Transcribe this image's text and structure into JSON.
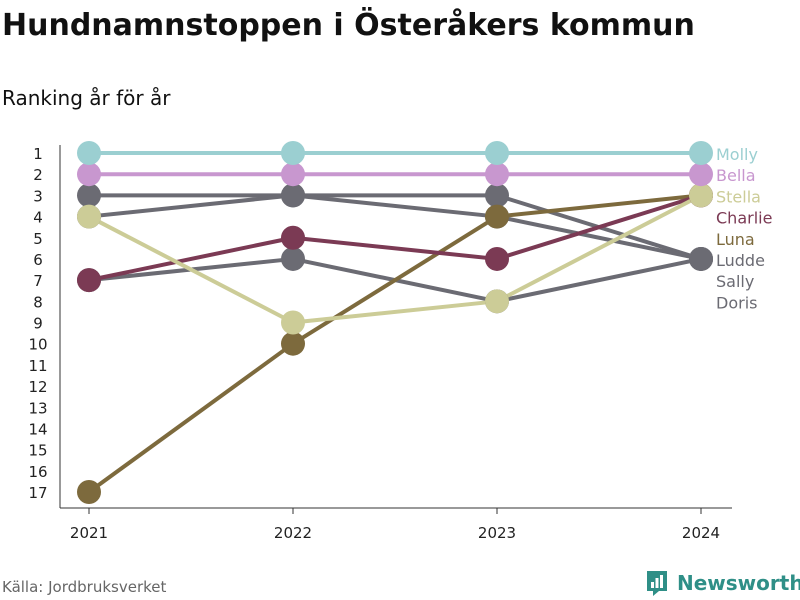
{
  "header": {
    "title": "Hundnamnstoppen i Österåkers kommun",
    "subtitle": "Ranking år för år"
  },
  "footer": {
    "source": "Källa: Jordbruksverket",
    "brand": "Newsworthy"
  },
  "chart_data": {
    "type": "line",
    "x": [
      "2021",
      "2022",
      "2023",
      "2024"
    ],
    "y_ticks": [
      "1",
      "2",
      "3",
      "4",
      "5",
      "6",
      "7",
      "8",
      "9",
      "10",
      "11",
      "12",
      "13",
      "14",
      "15",
      "16",
      "17"
    ],
    "ylim": [
      1,
      17
    ],
    "y_reversed": true,
    "legend_placement": "right",
    "series": [
      {
        "name": "Molly",
        "color": "#9bcfd1",
        "values": [
          1,
          1,
          1,
          1
        ]
      },
      {
        "name": "Bella",
        "color": "#c897cf",
        "values": [
          2,
          2,
          2,
          2
        ]
      },
      {
        "name": "Stella",
        "color": "#cccc97",
        "values": [
          4,
          9,
          8,
          3
        ]
      },
      {
        "name": "Charlie",
        "color": "#7b3a54",
        "values": [
          7,
          5,
          6,
          3
        ]
      },
      {
        "name": "Luna",
        "color": "#7d6a3d",
        "values": [
          17,
          10,
          4,
          3
        ]
      },
      {
        "name": "Ludde",
        "color": "#6b6b73",
        "values": [
          3,
          3,
          3,
          6
        ]
      },
      {
        "name": "Sally",
        "color": "#6b6b73",
        "values": [
          7,
          6,
          8,
          6
        ]
      },
      {
        "name": "Doris",
        "color": "#6b6b73",
        "values": [
          4,
          3,
          4,
          6
        ]
      }
    ]
  }
}
